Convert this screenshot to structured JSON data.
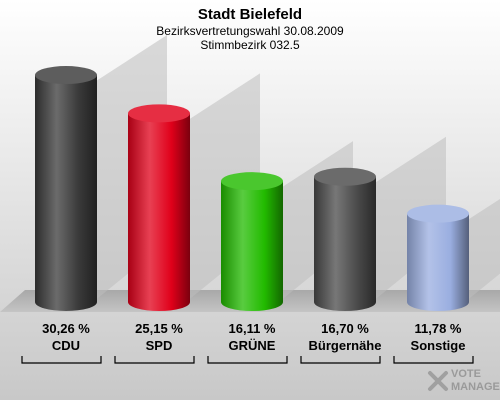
{
  "chart_data": {
    "type": "bar",
    "title": "Stadt Bielefeld",
    "subtitle_lines": [
      "Bezirksvertretungswahl 30.08.2009",
      "Stimmbezirk 032.5"
    ],
    "categories": [
      "CDU",
      "SPD",
      "GRÜNE",
      "Bürgernähe",
      "Sonstige"
    ],
    "values": [
      30.26,
      25.15,
      16.11,
      16.7,
      11.78
    ],
    "value_labels": [
      "30,26 %",
      "25,15 %",
      "16,11 %",
      "16,70 %",
      "11,78 %"
    ],
    "colors": [
      "#3a3a3a",
      "#e0001a",
      "#22bb00",
      "#4a4a4a",
      "#9aaee0"
    ],
    "ylim": [
      0,
      32
    ],
    "grid": false,
    "legend": "none"
  },
  "logo": {
    "line1": "VOTE",
    "line2": "MANAGER"
  }
}
